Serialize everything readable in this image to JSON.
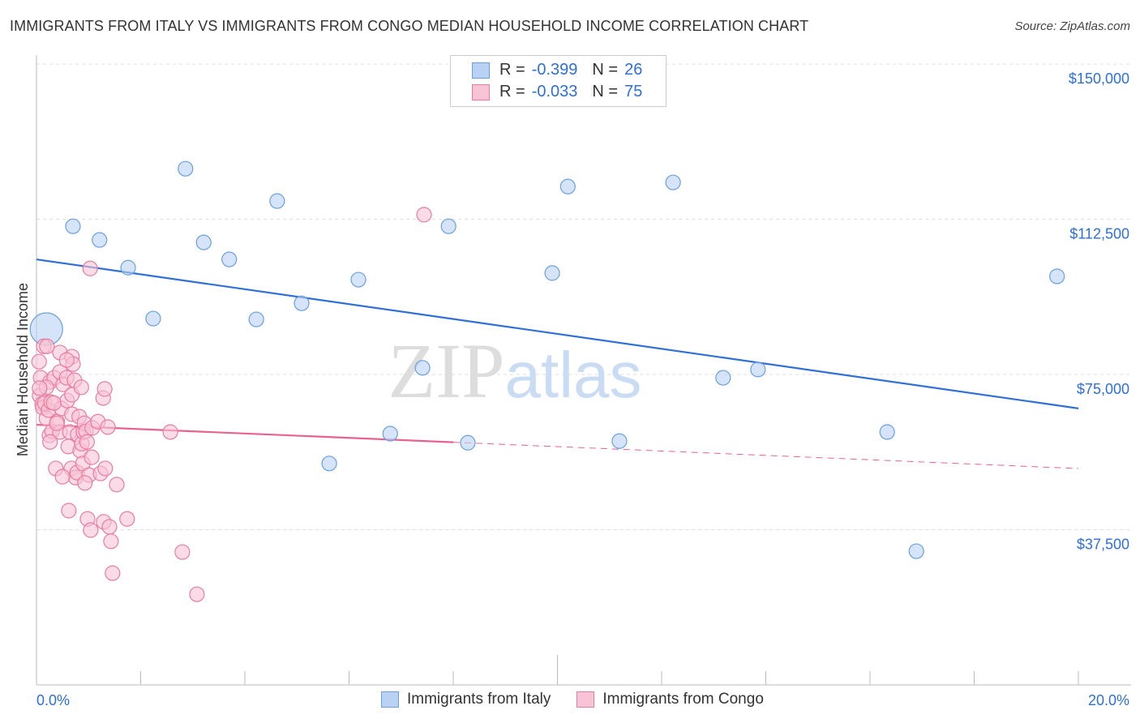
{
  "title": "IMMIGRANTS FROM ITALY VS IMMIGRANTS FROM CONGO MEDIAN HOUSEHOLD INCOME CORRELATION CHART",
  "source": "Source: ZipAtlas.com",
  "watermark": "ZIPatlas",
  "legend": {
    "rows": [
      {
        "r_label": "R =",
        "r_value": "-0.399",
        "n_label": "N =",
        "n_value": "26"
      },
      {
        "r_label": "R =",
        "r_value": "-0.033",
        "n_label": "N =",
        "n_value": "75"
      }
    ]
  },
  "chart_data": {
    "type": "scatter",
    "title": "IMMIGRANTS FROM ITALY VS IMMIGRANTS FROM CONGO MEDIAN HOUSEHOLD INCOME CORRELATION CHART",
    "xlabel": "",
    "ylabel": "Median Household Income",
    "xlim": [
      0,
      20
    ],
    "ylim": [
      0,
      157000
    ],
    "x_tick_labels": [
      "0.0%",
      "20.0%"
    ],
    "y_ticks": [
      37500,
      75000,
      112500,
      150000
    ],
    "y_tick_labels": [
      "$37,500",
      "$75,000",
      "$112,500",
      "$150,000"
    ],
    "grid": true,
    "legend_position": "top-center",
    "series": [
      {
        "name": "Immigrants from Italy",
        "color": "#6a9fe0",
        "fill": "#b9d2f3",
        "trend": {
          "x": [
            0,
            20
          ],
          "y": [
            102800,
            66800
          ],
          "solid_until": 20
        },
        "points": [
          [
            0.19,
            85960,
            "big"
          ],
          [
            0.7,
            110800
          ],
          [
            1.21,
            107500
          ],
          [
            1.76,
            100800
          ],
          [
            2.24,
            88500
          ],
          [
            2.86,
            124700
          ],
          [
            3.21,
            106900
          ],
          [
            3.7,
            102800
          ],
          [
            4.22,
            88300
          ],
          [
            4.62,
            116900
          ],
          [
            5.09,
            92200
          ],
          [
            5.62,
            53500
          ],
          [
            6.18,
            97900
          ],
          [
            6.79,
            60700
          ],
          [
            7.41,
            76600
          ],
          [
            7.91,
            110800
          ],
          [
            8.28,
            58500
          ],
          [
            9.9,
            99500
          ],
          [
            10.2,
            120400
          ],
          [
            11.19,
            58900
          ],
          [
            12.22,
            121400
          ],
          [
            13.18,
            74200
          ],
          [
            13.85,
            76200
          ],
          [
            16.33,
            61100
          ],
          [
            16.89,
            32300
          ],
          [
            19.59,
            98700
          ]
        ]
      },
      {
        "name": "Immigrants from Congo",
        "color": "#e87ca0",
        "fill": "#f8c3d4",
        "trend": {
          "x": [
            0,
            20
          ],
          "y": [
            62850,
            52280
          ],
          "solid_until": 8.0
        },
        "points": [
          [
            0.14,
            81800
          ],
          [
            0.05,
            78100
          ],
          [
            0.08,
            74200
          ],
          [
            0.06,
            69900
          ],
          [
            0.11,
            67900
          ],
          [
            0.12,
            67000
          ],
          [
            0.16,
            68100
          ],
          [
            0.19,
            64400
          ],
          [
            0.23,
            66400
          ],
          [
            0.25,
            60300
          ],
          [
            0.3,
            61300
          ],
          [
            0.28,
            68300
          ],
          [
            0.26,
            73200
          ],
          [
            0.34,
            74200
          ],
          [
            0.37,
            52300
          ],
          [
            0.4,
            63600
          ],
          [
            0.45,
            80300
          ],
          [
            0.45,
            75600
          ],
          [
            0.45,
            61100
          ],
          [
            0.48,
            66800
          ],
          [
            0.51,
            72600
          ],
          [
            0.58,
            74200
          ],
          [
            0.59,
            68700
          ],
          [
            0.61,
            57600
          ],
          [
            0.62,
            42100
          ],
          [
            0.64,
            61100
          ],
          [
            0.67,
            52300
          ],
          [
            0.68,
            79300
          ],
          [
            0.68,
            65400
          ],
          [
            0.68,
            70100
          ],
          [
            0.7,
            77500
          ],
          [
            0.73,
            73600
          ],
          [
            0.75,
            50100
          ],
          [
            0.78,
            51300
          ],
          [
            0.79,
            60500
          ],
          [
            0.82,
            64800
          ],
          [
            0.84,
            56600
          ],
          [
            0.86,
            71900
          ],
          [
            0.87,
            58300
          ],
          [
            0.89,
            53500
          ],
          [
            0.9,
            61100
          ],
          [
            0.92,
            63200
          ],
          [
            0.95,
            61300
          ],
          [
            0.97,
            58700
          ],
          [
            0.98,
            40100
          ],
          [
            1.01,
            50700
          ],
          [
            1.03,
            100600
          ],
          [
            1.04,
            37400
          ],
          [
            1.07,
            62100
          ],
          [
            1.18,
            63600
          ],
          [
            1.23,
            51100
          ],
          [
            1.28,
            69300
          ],
          [
            1.29,
            39400
          ],
          [
            1.31,
            71500
          ],
          [
            1.32,
            52300
          ],
          [
            1.37,
            62300
          ],
          [
            1.4,
            38200
          ],
          [
            1.43,
            34700
          ],
          [
            1.46,
            27000
          ],
          [
            1.54,
            48400
          ],
          [
            1.74,
            40100
          ],
          [
            2.57,
            61100
          ],
          [
            2.8,
            32100
          ],
          [
            3.08,
            21900
          ],
          [
            7.44,
            113600
          ],
          [
            0.58,
            78500
          ],
          [
            0.33,
            68100
          ],
          [
            0.39,
            63200
          ],
          [
            0.19,
            71900
          ],
          [
            0.06,
            71700
          ],
          [
            0.2,
            81800
          ],
          [
            0.93,
            48800
          ],
          [
            0.5,
            50300
          ],
          [
            0.26,
            58700
          ],
          [
            1.06,
            55000
          ]
        ]
      }
    ]
  }
}
